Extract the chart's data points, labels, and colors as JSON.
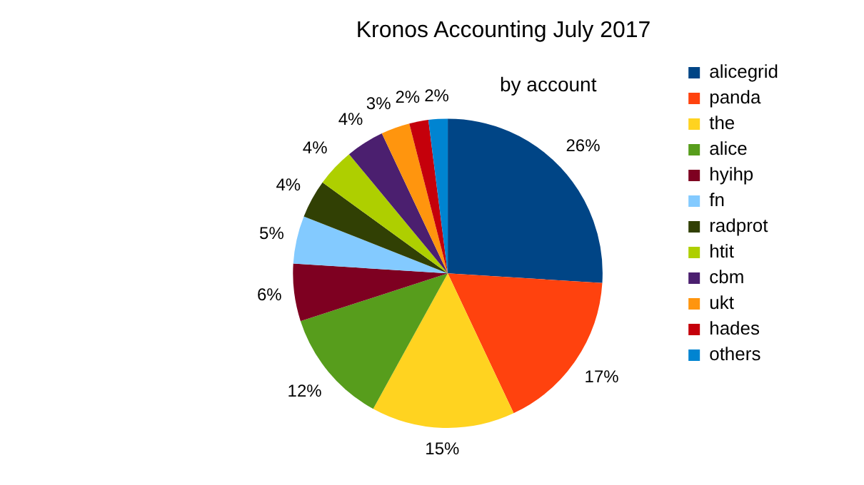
{
  "chart_data": {
    "type": "pie",
    "title": "Kronos Accounting July 2017",
    "subtitle": "by account",
    "categories": [
      "alicegrid",
      "panda",
      "the",
      "alice",
      "hyihp",
      "fn",
      "radprot",
      "htit",
      "cbm",
      "ukt",
      "hades",
      "others"
    ],
    "values": [
      26,
      17,
      15,
      12,
      6,
      5,
      4,
      4,
      4,
      3,
      2,
      2
    ],
    "value_labels": [
      "26%",
      "17%",
      "15%",
      "12%",
      "6%",
      "5%",
      "4%",
      "4%",
      "4%",
      "3%",
      "2%",
      "2%"
    ],
    "colors": [
      "#004586",
      "#ff420e",
      "#ffd320",
      "#579d1c",
      "#7e0021",
      "#83caff",
      "#314004",
      "#aecf00",
      "#4b1f6f",
      "#ff950e",
      "#c5000b",
      "#0084d1"
    ],
    "legend": "right"
  }
}
